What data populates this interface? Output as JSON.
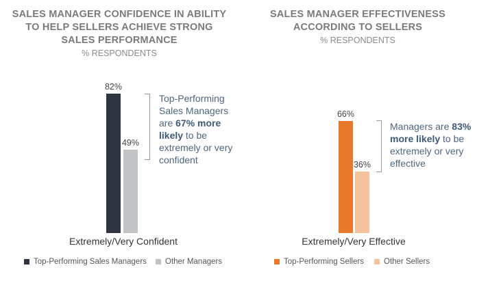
{
  "chart_data": [
    {
      "type": "bar",
      "title": "SALES MANAGER CONFIDENCE IN ABILITY TO HELP SELLERS ACHIEVE STRONG SALES PERFORMANCE",
      "title_lines": [
        "SALES MANAGER CONFIDENCE IN ABILITY",
        "TO HELP SELLERS ACHIEVE STRONG",
        "SALES PERFORMANCE"
      ],
      "subtitle": "% RESPONDENTS",
      "categories": [
        "Extremely/Very Confident"
      ],
      "series": [
        {
          "name": "Top-Performing Sales Managers",
          "values": [
            82
          ],
          "label": "82%",
          "color": "#2f3642"
        },
        {
          "name": "Other Managers",
          "values": [
            49
          ],
          "label": "49%",
          "color": "#c0c4c7"
        }
      ],
      "annotation": {
        "pre": "Top-Performing Sales Managers are ",
        "bold": "67% more likely",
        "post": " to be extremely or very confident"
      },
      "legend": "bottom",
      "ylim": [
        0,
        100
      ]
    },
    {
      "type": "bar",
      "title": "SALES MANAGER EFFECTIVENESS ACCORDING TO SELLERS",
      "title_lines": [
        "SALES MANAGER EFFECTIVENESS",
        "ACCORDING TO SELLERS"
      ],
      "subtitle": "% RESPONDENTS",
      "categories": [
        "Extremely/Very Effective"
      ],
      "series": [
        {
          "name": "Top-Performing Sellers",
          "values": [
            66
          ],
          "label": "66%",
          "color": "#e8792a"
        },
        {
          "name": "Other Sellers",
          "values": [
            36
          ],
          "label": "36%",
          "color": "#f4c29c"
        }
      ],
      "annotation": {
        "pre": "Managers are ",
        "bold": "83% more likely",
        "post": " to be extremely or very effective"
      },
      "legend": "bottom",
      "ylim": [
        0,
        100
      ]
    }
  ]
}
